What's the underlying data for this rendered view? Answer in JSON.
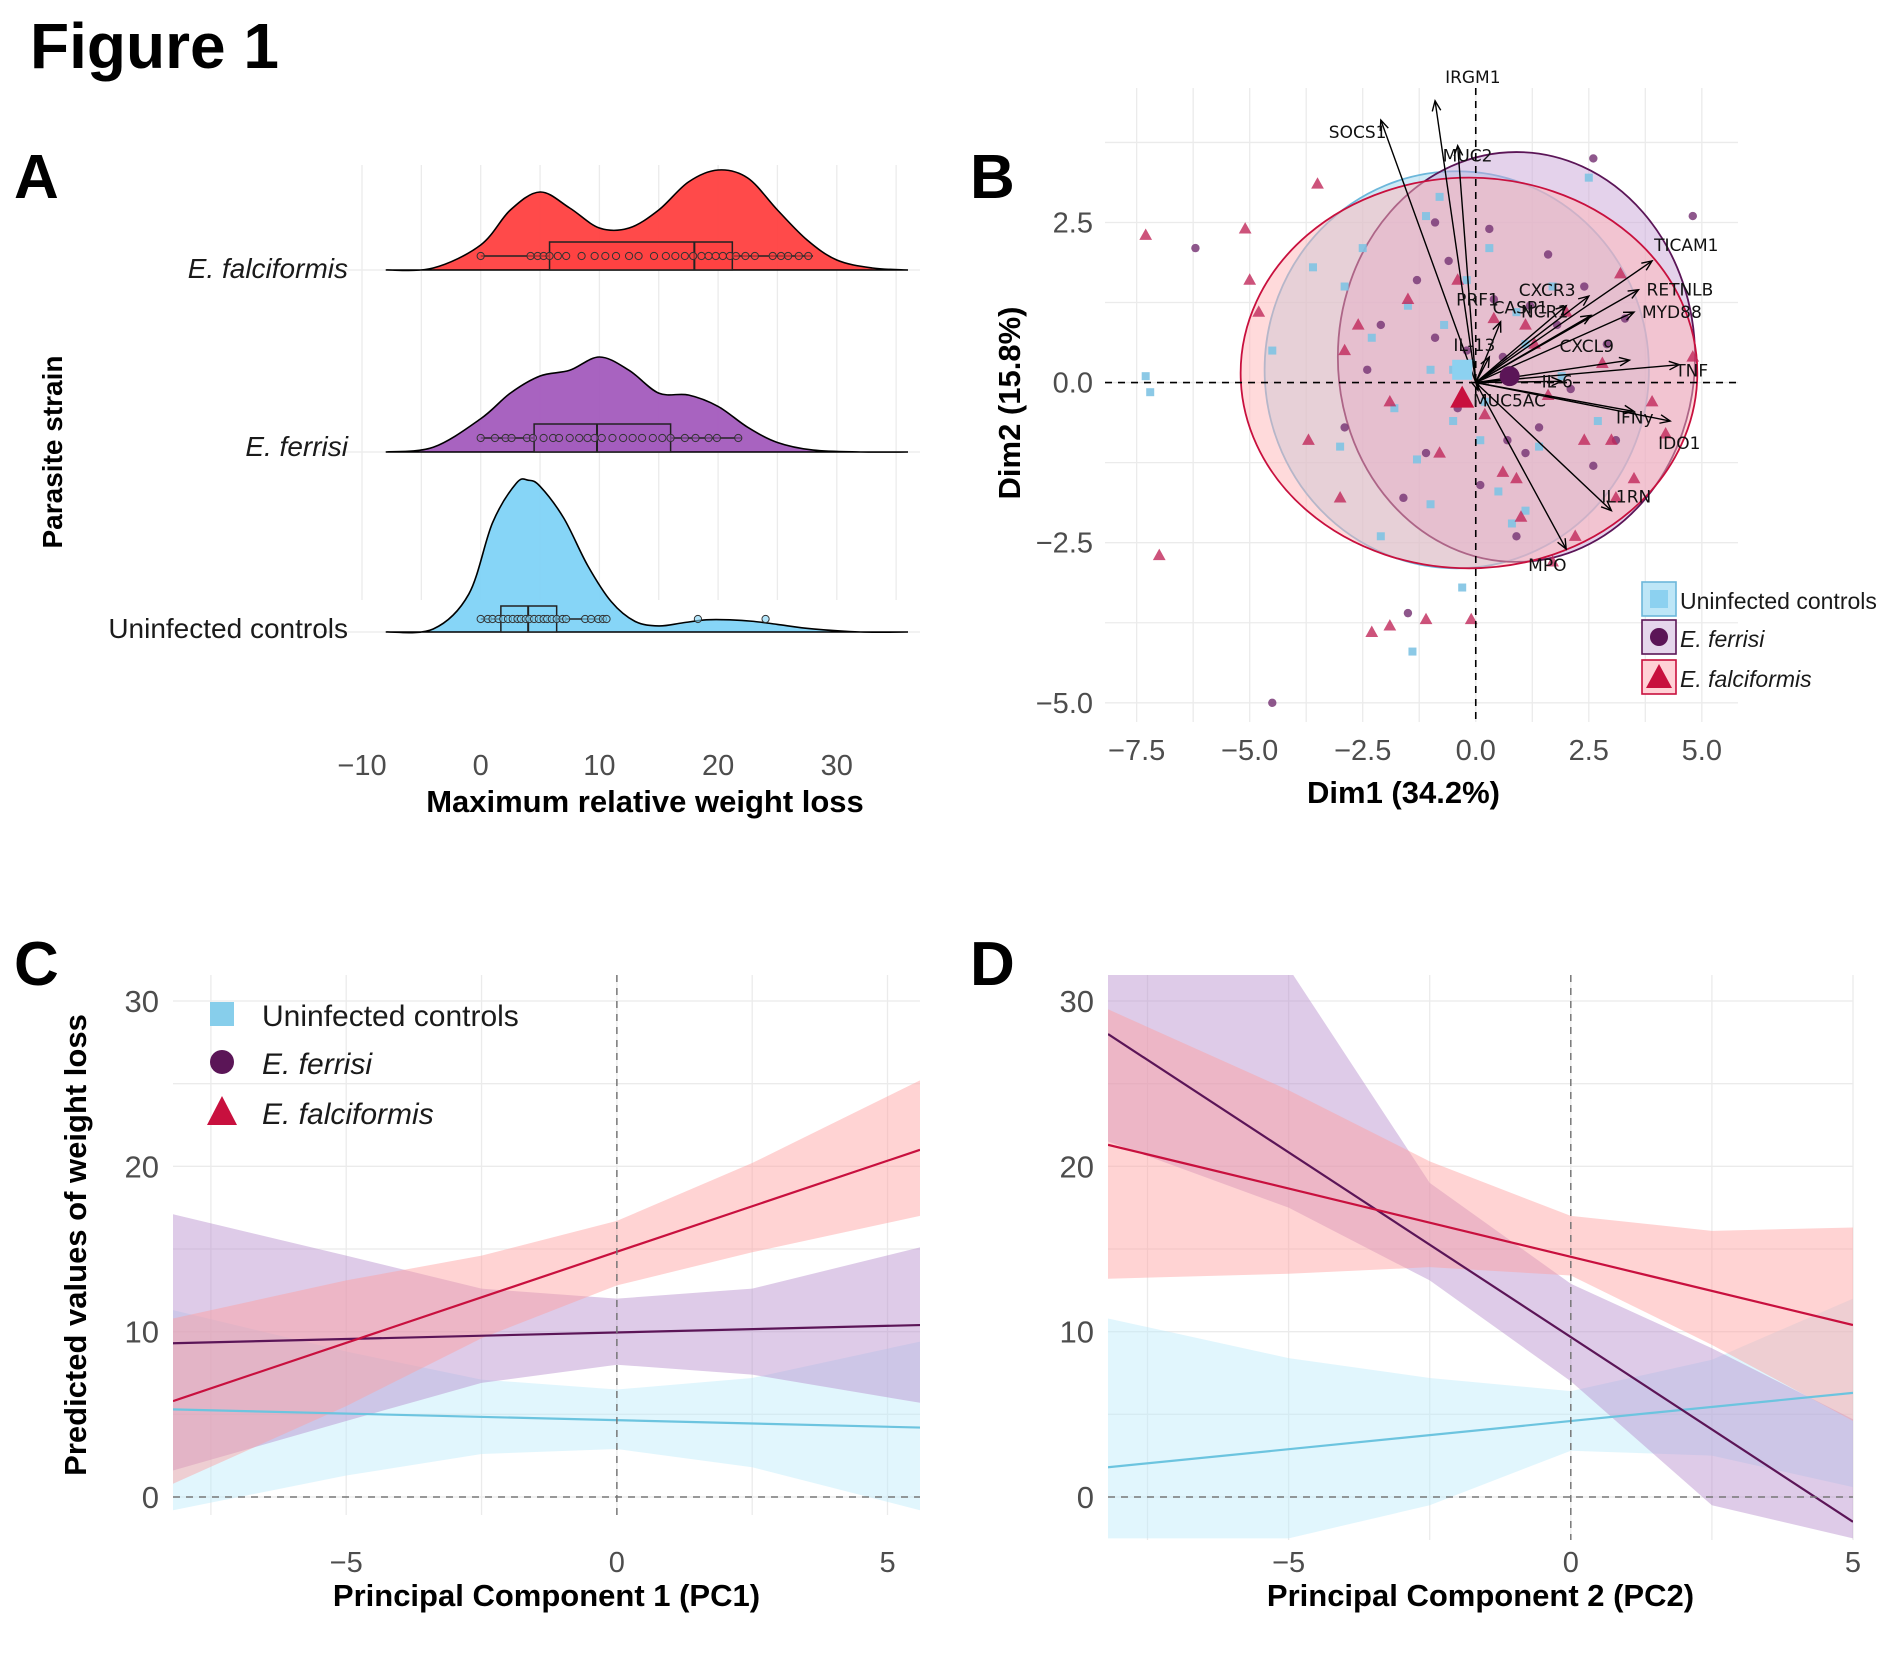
{
  "figure_title": "Figure 1",
  "colors": {
    "uninfected": "#87CEEB",
    "ferrisi": "#5B1557",
    "falciformis": "#C8103E",
    "ridge_falciformis": "#FF4040",
    "ridge_ferrisi": "#A35BBD",
    "ridge_uninfected": "#7FD3F7"
  },
  "legend": {
    "uninfected": "Uninfected controls",
    "ferrisi": "E. ferrisi",
    "falciformis": "E. falciformis"
  },
  "chart_data": [
    {
      "panel": "A",
      "type": "ridgeline-boxplot",
      "xlabel": "Maximum relative weight loss",
      "ylabel": "Parasite strain",
      "xlim": [
        -10,
        36
      ],
      "xticks": [
        "−10",
        "0",
        "10",
        "20",
        "30"
      ],
      "xtick_values": [
        -10,
        0,
        10,
        20,
        30
      ],
      "groups": [
        {
          "name": "E. falciformis",
          "density_x": [
            -8,
            -4,
            0,
            2.5,
            5,
            7.5,
            10,
            12.5,
            15,
            17.5,
            20,
            22.5,
            25,
            27.5,
            30,
            33,
            36
          ],
          "density_y": [
            0,
            0.02,
            0.25,
            0.6,
            0.78,
            0.62,
            0.42,
            0.42,
            0.6,
            0.88,
            1.0,
            0.92,
            0.6,
            0.3,
            0.1,
            0.02,
            0
          ],
          "box": {
            "q1": 5.8,
            "median": 18,
            "q3": 21.2,
            "min": 0,
            "max": 28
          },
          "points": [
            0,
            4.2,
            4.8,
            5.3,
            5.8,
            6.5,
            7.2,
            8.5,
            9.6,
            10.5,
            11.4,
            12.5,
            13.3,
            14.6,
            15.6,
            16.4,
            17.2,
            17.9,
            18.6,
            19.2,
            19.8,
            20.4,
            21.0,
            21.5,
            22.3,
            23.1,
            24.6,
            25.3,
            25.9,
            26.8,
            27.6
          ]
        },
        {
          "name": "E. ferrisi",
          "density_x": [
            -8,
            -4,
            0,
            2.5,
            5,
            7.5,
            10,
            12.5,
            15,
            17.5,
            20,
            22.5,
            25,
            28,
            32,
            36
          ],
          "density_y": [
            0,
            0.05,
            0.35,
            0.62,
            0.8,
            0.86,
            1.0,
            0.86,
            0.62,
            0.6,
            0.48,
            0.26,
            0.1,
            0.02,
            0,
            0
          ],
          "box": {
            "q1": 4.5,
            "median": 9.8,
            "q3": 16,
            "min": 0,
            "max": 22
          },
          "points": [
            0,
            1.2,
            2.1,
            2.6,
            3.9,
            4.4,
            5.3,
            6.1,
            6.6,
            7.5,
            8.3,
            9.0,
            9.6,
            10.2,
            11.1,
            12.0,
            12.8,
            13.6,
            14.5,
            15.3,
            16.0,
            17.2,
            18.1,
            19.2,
            19.9,
            21.7
          ]
        },
        {
          "name": "Uninfected controls",
          "density_x": [
            -8,
            -4,
            -1,
            1,
            3,
            4,
            5,
            7,
            9,
            11,
            13,
            15,
            17,
            19,
            21,
            23,
            25,
            28,
            32,
            36
          ],
          "density_y": [
            0,
            0.02,
            0.25,
            0.72,
            0.98,
            1.0,
            0.96,
            0.75,
            0.44,
            0.2,
            0.07,
            0.04,
            0.06,
            0.08,
            0.08,
            0.07,
            0.05,
            0.02,
            0,
            0
          ],
          "box": {
            "q1": 1.7,
            "median": 4,
            "q3": 6.4,
            "min": 0,
            "max": 10.5
          },
          "points": [
            0,
            0.6,
            1.0,
            1.5,
            1.9,
            2.3,
            2.7,
            3.1,
            3.4,
            3.8,
            4.1,
            4.5,
            4.9,
            5.3,
            5.6,
            6.0,
            6.4,
            6.9,
            7.2,
            8.8,
            9.3,
            9.9,
            10.3,
            10.6,
            18.3,
            24.0
          ]
        }
      ]
    },
    {
      "panel": "B",
      "type": "scatter",
      "subtype": "pca-biplot",
      "xlabel": "Dim1 (34.2%)",
      "ylabel": "Dim2 (15.8%)",
      "xlim": [
        -8.2,
        5.8
      ],
      "ylim": [
        -5.3,
        4.6
      ],
      "xticks": [
        "−7.5",
        "−5.0",
        "−2.5",
        "0.0",
        "2.5",
        "5.0"
      ],
      "xtick_values": [
        -7.5,
        -5,
        -2.5,
        0,
        2.5,
        5
      ],
      "yticks": [
        "2.5",
        "0.0",
        "−2.5",
        "−5.0"
      ],
      "ytick_values": [
        2.5,
        0,
        -2.5,
        -5
      ],
      "loadings": [
        {
          "name": "IRGM1",
          "x": -0.9,
          "y": 4.4
        },
        {
          "name": "SOCS1",
          "x": -2.1,
          "y": 4.1
        },
        {
          "name": "MUC2",
          "x": -0.4,
          "y": 3.7
        },
        {
          "name": "TICAM1",
          "x": 3.9,
          "y": 1.9
        },
        {
          "name": "RETNLB",
          "x": 3.6,
          "y": 1.45
        },
        {
          "name": "CXCR3",
          "x": 2.5,
          "y": 1.35
        },
        {
          "name": "PRF1",
          "x": 2.0,
          "y": 1.2
        },
        {
          "name": "MYD88",
          "x": 3.5,
          "y": 1.1
        },
        {
          "name": "CASP1",
          "x": 0.55,
          "y": 0.95
        },
        {
          "name": "NCR1",
          "x": 2.55,
          "y": 1.05
        },
        {
          "name": "IL-13",
          "x": 0.3,
          "y": 0.4
        },
        {
          "name": "CXCL9",
          "x": 3.4,
          "y": 0.35
        },
        {
          "name": "TNF",
          "x": 4.5,
          "y": 0.28
        },
        {
          "name": "IL-6",
          "x": 1.9,
          "y": 0.02
        },
        {
          "name": "IFNy",
          "x": 3.5,
          "y": -0.45
        },
        {
          "name": "IDO1",
          "x": 4.3,
          "y": -0.6
        },
        {
          "name": "MUC5AC",
          "x": 0.05,
          "y": -0.12
        },
        {
          "name": "IL1RN",
          "x": 3.0,
          "y": -2.0
        },
        {
          "name": "MPO",
          "x": 2.0,
          "y": -2.6
        }
      ],
      "ellipses": [
        {
          "group": "Uninfected controls",
          "cx": -0.42,
          "cy": 0.2,
          "rx": 4.25,
          "ry": 3.1,
          "angle": 0
        },
        {
          "group": "E. ferrisi",
          "cx": 0.9,
          "cy": 0.4,
          "rx": 3.95,
          "ry": 3.2,
          "angle": 0
        },
        {
          "group": "E. falciformis",
          "cx": -0.15,
          "cy": 0.15,
          "rx": 5.05,
          "ry": 3.05,
          "angle": 0
        }
      ],
      "centroids": [
        {
          "group": "Uninfected controls",
          "x": -0.3,
          "y": 0.2
        },
        {
          "group": "E. ferrisi",
          "x": 0.75,
          "y": 0.1
        },
        {
          "group": "E. falciformis",
          "x": -0.3,
          "y": -0.25
        }
      ],
      "points": {
        "Uninfected controls": [
          [
            -7.3,
            0.1
          ],
          [
            -7.2,
            -0.15
          ],
          [
            -4.5,
            0.5
          ],
          [
            -3.6,
            1.8
          ],
          [
            -2.9,
            1.5
          ],
          [
            -2.5,
            2.1
          ],
          [
            -2.3,
            0.7
          ],
          [
            -1.8,
            -0.4
          ],
          [
            -1.5,
            1.2
          ],
          [
            -1.3,
            -1.2
          ],
          [
            -1.1,
            2.6
          ],
          [
            -1.0,
            -1.9
          ],
          [
            -0.7,
            0.9
          ],
          [
            -0.5,
            -0.6
          ],
          [
            -0.3,
            -3.2
          ],
          [
            -0.2,
            1.6
          ],
          [
            0.3,
            2.1
          ],
          [
            0.5,
            -1.7
          ],
          [
            0.8,
            -2.2
          ],
          [
            1.1,
            0.6
          ],
          [
            1.4,
            -1.0
          ],
          [
            1.7,
            1.5
          ],
          [
            2.5,
            3.2
          ],
          [
            2.7,
            -0.6
          ],
          [
            -1.4,
            -4.2
          ],
          [
            -2.1,
            -2.4
          ],
          [
            -0.1,
            0.3
          ],
          [
            0.2,
            -0.3
          ],
          [
            1.9,
            0.1
          ],
          [
            -0.8,
            2.9
          ],
          [
            -3.0,
            -1.0
          ],
          [
            0.9,
            1.1
          ],
          [
            -1.0,
            0.2
          ],
          [
            -0.5,
            0.2
          ],
          [
            0.1,
            -0.9
          ],
          [
            1.1,
            -2.0
          ]
        ],
        "E. ferrisi": [
          [
            -6.2,
            2.1
          ],
          [
            -4.5,
            -5.0
          ],
          [
            -2.9,
            -0.7
          ],
          [
            -2.1,
            0.9
          ],
          [
            -1.6,
            -1.8
          ],
          [
            -1.3,
            1.6
          ],
          [
            -1.1,
            -1.1
          ],
          [
            -0.9,
            0.7
          ],
          [
            -0.6,
            1.9
          ],
          [
            -0.4,
            -0.4
          ],
          [
            -0.2,
            0.5
          ],
          [
            0.1,
            -1.6
          ],
          [
            0.3,
            2.4
          ],
          [
            0.6,
            0.4
          ],
          [
            0.9,
            -2.4
          ],
          [
            1.2,
            1.2
          ],
          [
            1.4,
            -0.7
          ],
          [
            1.8,
            0.9
          ],
          [
            2.1,
            -0.1
          ],
          [
            2.4,
            1.5
          ],
          [
            2.6,
            -1.3
          ],
          [
            2.9,
            0.6
          ],
          [
            3.1,
            -0.9
          ],
          [
            3.3,
            1.0
          ],
          [
            2.6,
            3.5
          ],
          [
            4.8,
            2.6
          ],
          [
            -1.5,
            -3.6
          ],
          [
            -2.4,
            0.2
          ],
          [
            0.7,
            -0.9
          ],
          [
            1.6,
            2.0
          ],
          [
            -0.9,
            2.5
          ],
          [
            0.4,
            1.3
          ],
          [
            1.1,
            -1.1
          ]
        ],
        "E. falciformis": [
          [
            -7.3,
            2.3
          ],
          [
            -7.0,
            -2.7
          ],
          [
            -5.1,
            2.4
          ],
          [
            -5.0,
            1.6
          ],
          [
            -4.8,
            1.1
          ],
          [
            -3.7,
            -0.9
          ],
          [
            -3.5,
            3.1
          ],
          [
            -3.0,
            -1.8
          ],
          [
            -2.6,
            0.9
          ],
          [
            -1.9,
            -0.3
          ],
          [
            -1.5,
            1.3
          ],
          [
            -1.1,
            -3.7
          ],
          [
            -0.8,
            -1.1
          ],
          [
            -0.4,
            1.6
          ],
          [
            -0.1,
            -3.7
          ],
          [
            0.2,
            -0.5
          ],
          [
            0.4,
            1.0
          ],
          [
            0.6,
            -1.4
          ],
          [
            1.0,
            -2.1
          ],
          [
            1.3,
            0.6
          ],
          [
            1.6,
            -0.2
          ],
          [
            2.0,
            1.1
          ],
          [
            2.4,
            -0.9
          ],
          [
            2.8,
            0.3
          ],
          [
            3.0,
            -0.9
          ],
          [
            3.2,
            1.7
          ],
          [
            3.5,
            -1.5
          ],
          [
            3.9,
            -0.3
          ],
          [
            4.2,
            -0.8
          ],
          [
            4.8,
            0.4
          ],
          [
            3.1,
            -1.8
          ],
          [
            1.7,
            -2.8
          ],
          [
            -2.3,
            -3.9
          ],
          [
            -1.9,
            -3.8
          ],
          [
            -2.9,
            0.5
          ],
          [
            0.9,
            -1.5
          ],
          [
            2.2,
            -2.4
          ],
          [
            1.1,
            0.9
          ]
        ]
      }
    },
    {
      "panel": "C",
      "type": "line",
      "subtype": "predicted-with-ci",
      "xlabel": "Principal Component 1 (PC1)",
      "ylabel": "Predicted values of weight loss",
      "xlim": [
        -8.2,
        5.6
      ],
      "ylim": [
        -2.5,
        32
      ],
      "xticks": [
        "−5",
        "0",
        "5"
      ],
      "xtick_values": [
        -5,
        0,
        5
      ],
      "yticks": [
        "0",
        "10",
        "20",
        "30"
      ],
      "ytick_values": [
        0,
        10,
        20,
        30
      ],
      "series": [
        {
          "name": "Uninfected controls",
          "x": [
            -8.2,
            -5,
            -2.5,
            0,
            2.5,
            5.6
          ],
          "y": [
            5.3,
            5.1,
            4.9,
            4.7,
            4.5,
            4.2
          ],
          "lower": [
            -0.8,
            1.3,
            2.6,
            2.9,
            1.8,
            -0.8
          ],
          "upper": [
            11.3,
            8.8,
            7.1,
            6.5,
            7.2,
            9.4
          ]
        },
        {
          "name": "E. ferrisi",
          "x": [
            -8.2,
            -5,
            -2.5,
            0,
            2.5,
            5.6
          ],
          "y": [
            9.3,
            9.5,
            9.8,
            10.0,
            10.1,
            10.4
          ],
          "lower": [
            1.6,
            4.6,
            6.9,
            8.0,
            7.4,
            5.7
          ],
          "upper": [
            17.1,
            14.6,
            12.6,
            12.0,
            12.6,
            15.1
          ]
        },
        {
          "name": "E. falciformis",
          "x": [
            -8.2,
            -5,
            -2.5,
            0,
            2.5,
            5.6
          ],
          "y": [
            5.8,
            9.3,
            12.0,
            14.7,
            17.5,
            21.0
          ],
          "lower": [
            0.8,
            5.5,
            9.6,
            12.8,
            14.8,
            17.0
          ],
          "upper": [
            10.8,
            13.1,
            14.6,
            16.7,
            20.2,
            25.2
          ]
        }
      ],
      "legend": [
        "Uninfected controls",
        "E. ferrisi",
        "E. falciformis"
      ]
    },
    {
      "panel": "D",
      "type": "line",
      "subtype": "predicted-with-ci",
      "xlabel": "Principal Component 2 (PC2)",
      "ylabel": "",
      "xlim": [
        -8.2,
        5.0
      ],
      "ylim": [
        -2.5,
        32
      ],
      "xticks": [
        "−5",
        "0",
        "5"
      ],
      "xtick_values": [
        -5,
        0,
        5
      ],
      "yticks": [
        "0",
        "10",
        "20",
        "30"
      ],
      "ytick_values": [
        0,
        10,
        20,
        30
      ],
      "series": [
        {
          "name": "Uninfected controls",
          "x": [
            -8.2,
            -5,
            -2.5,
            0,
            2.5,
            5.0
          ],
          "y": [
            1.8,
            2.5,
            3.4,
            4.6,
            5.5,
            6.3
          ],
          "lower": [
            -2.5,
            -2.5,
            -0.5,
            2.8,
            2.5,
            0.6
          ],
          "upper": [
            10.8,
            8.4,
            7.2,
            6.4,
            8.3,
            12.0
          ]
        },
        {
          "name": "E. ferrisi",
          "x": [
            -8.2,
            -5,
            -2.5,
            0,
            2.5,
            5.0
          ],
          "y": [
            28.0,
            21.5,
            15.9,
            10.0,
            4.3,
            -1.5
          ],
          "lower": [
            21.5,
            17.5,
            13.1,
            7.0,
            -0.5,
            -2.5
          ],
          "upper": [
            32,
            32,
            19.0,
            12.9,
            9.0,
            4.7
          ]
        },
        {
          "name": "E. falciformis",
          "x": [
            -8.2,
            -5,
            -2.5,
            0,
            2.5,
            5.0
          ],
          "y": [
            21.3,
            19.0,
            17.0,
            14.7,
            12.6,
            10.4
          ],
          "lower": [
            13.2,
            13.5,
            13.9,
            13.4,
            9.2,
            4.6
          ],
          "upper": [
            29.5,
            24.6,
            20.3,
            17.0,
            16.1,
            16.3
          ]
        }
      ]
    }
  ]
}
